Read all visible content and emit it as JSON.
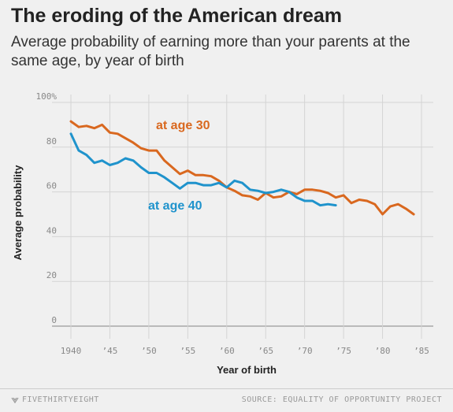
{
  "header": {
    "title": "The eroding of the American dream",
    "subtitle": "Average probability of earning more than your parents at the same age, by year of birth"
  },
  "footer": {
    "brand": "FIVETHIRTYEIGHT",
    "source": "SOURCE: EQUALITY OF OPPORTUNITY PROJECT"
  },
  "colors": {
    "age30": "#d9681f",
    "age40": "#1f93cc",
    "grid": "#d4d4d4",
    "baseline": "#999999"
  },
  "chart_data": {
    "type": "line",
    "title": "The eroding of the American dream",
    "subtitle": "Average probability of earning more than your parents at the same age, by year of birth",
    "xlabel": "Year of birth",
    "ylabel": "Average probability",
    "xlim": [
      1938,
      1986
    ],
    "ylim": [
      0,
      100
    ],
    "grid": true,
    "y_ticks": [
      {
        "value": 0,
        "label": "0"
      },
      {
        "value": 20,
        "label": "20"
      },
      {
        "value": 40,
        "label": "40"
      },
      {
        "value": 60,
        "label": "60"
      },
      {
        "value": 80,
        "label": "80"
      },
      {
        "value": 100,
        "label": "100%"
      }
    ],
    "x_ticks": [
      {
        "value": 1940,
        "label": "1940"
      },
      {
        "value": 1945,
        "label": "’45"
      },
      {
        "value": 1950,
        "label": "’50"
      },
      {
        "value": 1955,
        "label": "’55"
      },
      {
        "value": 1960,
        "label": "’60"
      },
      {
        "value": 1965,
        "label": "’65"
      },
      {
        "value": 1970,
        "label": "’70"
      },
      {
        "value": 1975,
        "label": "’75"
      },
      {
        "value": 1980,
        "label": "’80"
      },
      {
        "value": 1985,
        "label": "’85"
      }
    ],
    "series": [
      {
        "name": "at age 30",
        "color": "#d9681f",
        "x": [
          1940,
          1941,
          1942,
          1943,
          1944,
          1945,
          1946,
          1947,
          1948,
          1949,
          1950,
          1951,
          1952,
          1953,
          1954,
          1955,
          1956,
          1957,
          1958,
          1959,
          1960,
          1961,
          1962,
          1963,
          1964,
          1965,
          1966,
          1967,
          1968,
          1969,
          1970,
          1971,
          1972,
          1973,
          1974,
          1975,
          1976,
          1977,
          1978,
          1979,
          1980,
          1981,
          1982,
          1983,
          1984
        ],
        "values": [
          91.5,
          89,
          89.5,
          88.5,
          90,
          86.5,
          86,
          84,
          82,
          79.5,
          78.5,
          78.5,
          74,
          71,
          68,
          69.5,
          67.5,
          67.5,
          67,
          65,
          62,
          60.5,
          58.5,
          58,
          56.5,
          59.5,
          57.5,
          58,
          60,
          59,
          61,
          61,
          60.5,
          59.5,
          57.5,
          58.5,
          55,
          56.5,
          56,
          54.5,
          50,
          53.5,
          54.5,
          52.5,
          50
        ]
      },
      {
        "name": "at age 40",
        "color": "#1f93cc",
        "x": [
          1940,
          1941,
          1942,
          1943,
          1944,
          1945,
          1946,
          1947,
          1948,
          1949,
          1950,
          1951,
          1952,
          1953,
          1954,
          1955,
          1956,
          1957,
          1958,
          1959,
          1960,
          1961,
          1962,
          1963,
          1964,
          1965,
          1966,
          1967,
          1968,
          1969,
          1970,
          1971,
          1972,
          1973,
          1974
        ],
        "values": [
          86,
          78.5,
          76.5,
          73,
          74,
          72,
          73,
          75,
          74,
          71,
          68.5,
          68.5,
          66.5,
          64,
          61.5,
          64,
          64,
          63,
          63,
          64,
          62,
          65,
          64,
          61,
          60.5,
          59.5,
          60,
          61,
          60,
          57.5,
          56,
          56,
          54,
          54.5,
          54
        ]
      }
    ],
    "annotations": [
      {
        "text": "at age 30",
        "series": "at age 30"
      },
      {
        "text": "at age 40",
        "series": "at age 40"
      }
    ]
  }
}
